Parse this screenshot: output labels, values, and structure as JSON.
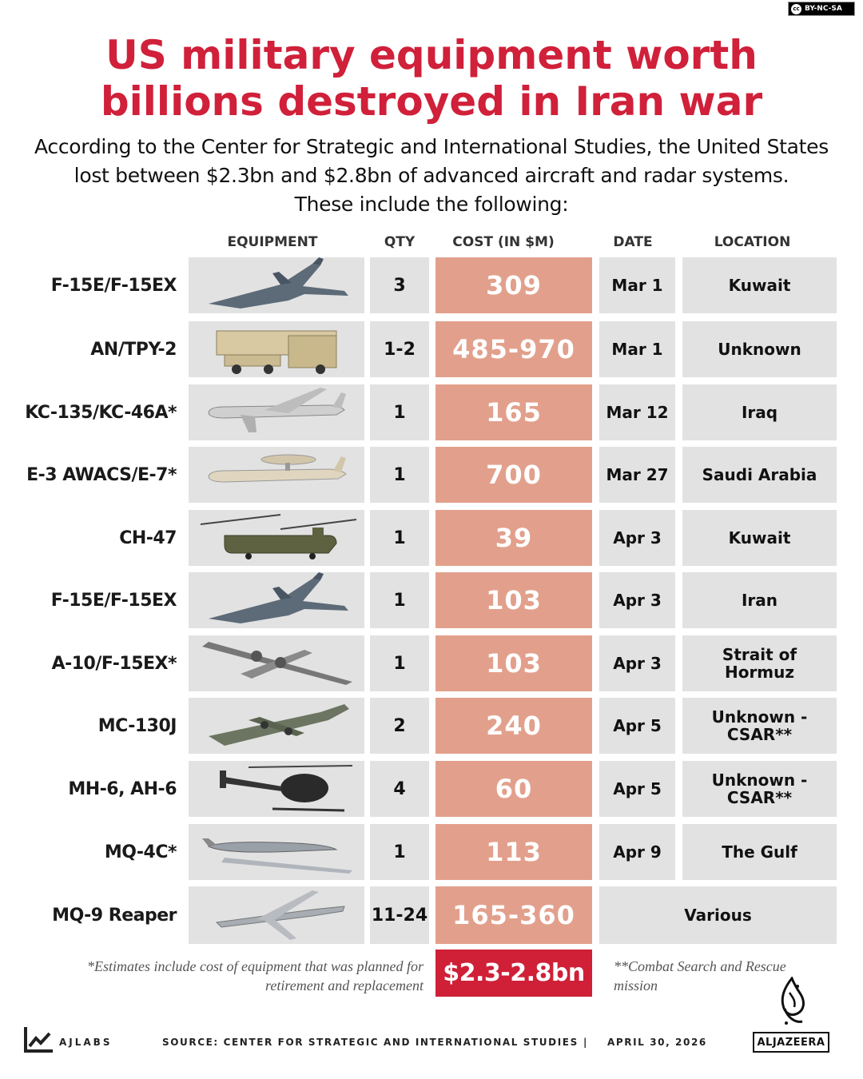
{
  "license": "BY-NC-SA",
  "title_line1": "US military equipment worth",
  "title_line2": "billions destroyed in Iran war",
  "subtitle_line1": "According to the Center for Strategic and International Studies, the United States",
  "subtitle_line2": "lost between $2.3bn and $2.8bn of advanced aircraft and radar systems.",
  "subtitle_line3": "These include the following:",
  "headers": {
    "equipment": "EQUIPMENT",
    "qty": "QTY",
    "cost": "COST (IN $M)",
    "date": "DATE",
    "location": "LOCATION"
  },
  "rows": [
    {
      "name": "F-15E/F-15EX",
      "qty": "3",
      "cost": "309",
      "date": "Mar 1",
      "location": "Kuwait",
      "icon": "fighter-jet-icon"
    },
    {
      "name": "AN/TPY-2",
      "qty": "1-2",
      "cost": "485-970",
      "date": "Mar 1",
      "location": "Unknown",
      "icon": "radar-trailer-icon"
    },
    {
      "name": "KC-135/KC-46A*",
      "qty": "1",
      "cost": "165",
      "date": "Mar 12",
      "location": "Iraq",
      "icon": "tanker-aircraft-icon"
    },
    {
      "name": "E-3 AWACS/E-7*",
      "qty": "1",
      "cost": "700",
      "date": "Mar 27",
      "location": "Saudi Arabia",
      "icon": "awacs-aircraft-icon"
    },
    {
      "name": "CH-47",
      "qty": "1",
      "cost": "39",
      "date": "Apr 3",
      "location": "Kuwait",
      "icon": "chinook-helicopter-icon"
    },
    {
      "name": "F-15E/F-15EX",
      "qty": "1",
      "cost": "103",
      "date": "Apr 3",
      "location": "Iran",
      "icon": "fighter-jet-icon"
    },
    {
      "name": "A-10/F-15EX*",
      "qty": "1",
      "cost": "103",
      "date": "Apr 3",
      "location": "Strait of Hormuz",
      "icon": "attack-jet-icon"
    },
    {
      "name": "MC-130J",
      "qty": "2",
      "cost": "240",
      "date": "Apr 5",
      "location": "Unknown - CSAR**",
      "icon": "transport-aircraft-icon"
    },
    {
      "name": "MH-6, AH-6",
      "qty": "4",
      "cost": "60",
      "date": "Apr 5",
      "location": "Unknown - CSAR**",
      "icon": "light-helicopter-icon"
    },
    {
      "name": "MQ-4C*",
      "qty": "1",
      "cost": "113",
      "date": "Apr 9",
      "location": "The Gulf",
      "icon": "surveillance-drone-icon"
    },
    {
      "name": "MQ-9 Reaper",
      "qty": "11-24",
      "cost": "165-360",
      "date": "",
      "location": "Various",
      "icon": "reaper-drone-icon"
    }
  ],
  "footnote_left": "*Estimates include cost of equipment that was planned for retirement and replacement",
  "total": "$2.3-2.8bn",
  "footnote_right": "**Combat Search and Rescue mission",
  "footer": {
    "brand": "AJLABS",
    "source": "SOURCE:  CENTER FOR STRATEGIC AND INTERNATIONAL STUDIES",
    "separator": "|",
    "date": "APRIL 30, 2026",
    "publisher": "ALJAZEERA"
  },
  "colors": {
    "title": "#d0203a",
    "cost_cell": "#e2a08c",
    "total_cell": "#cf2037",
    "cell": "#e2e2e2"
  }
}
